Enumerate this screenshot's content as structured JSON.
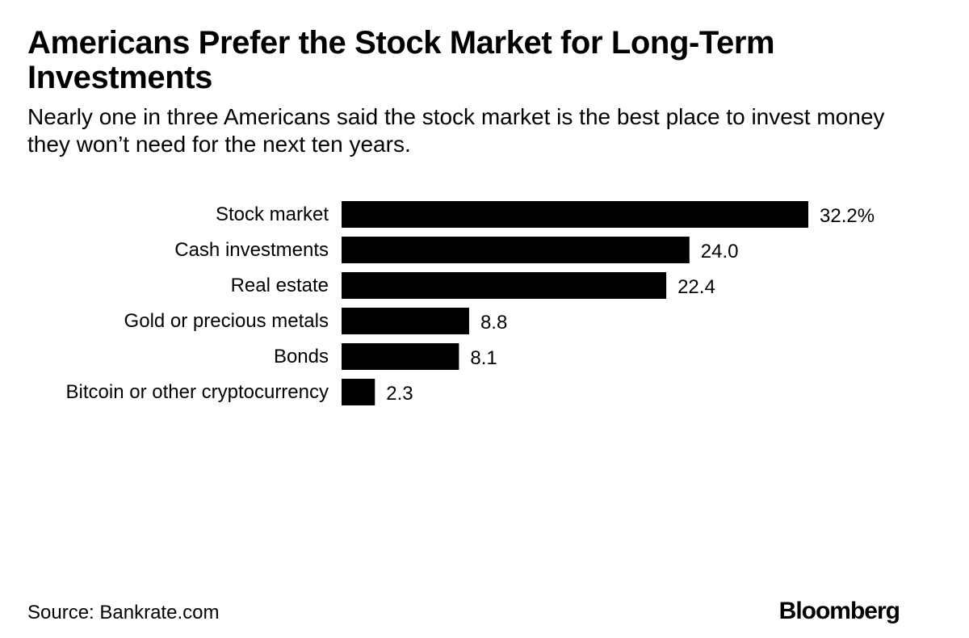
{
  "header": {
    "title": "Americans Prefer the Stock Market for Long-Term Investments",
    "subtitle": "Nearly one in three Americans said the stock market is the best place to invest money they won’t need for the next ten years."
  },
  "footer": {
    "source": "Source: Bankrate.com",
    "brand": "Bloomberg"
  },
  "colors": {
    "bar": "#000000",
    "text": "#000000",
    "background": "#ffffff"
  },
  "chart_data": {
    "type": "bar",
    "orientation": "horizontal",
    "title": "Americans Prefer the Stock Market for Long-Term Investments",
    "subtitle": "Nearly one in three Americans said the stock market is the best place to invest money they won’t need for the next ten years.",
    "xlabel": "",
    "ylabel": "",
    "grid": false,
    "xlim": [
      0,
      32.2
    ],
    "categories": [
      "Stock market",
      "Cash investments",
      "Real estate",
      "Gold or precious metals",
      "Bonds",
      "Bitcoin or other cryptocurrency"
    ],
    "values": [
      32.2,
      24.0,
      22.4,
      8.8,
      8.1,
      2.3
    ],
    "value_labels": [
      "32.2%",
      "24.0",
      "22.4",
      "8.8",
      "8.1",
      "2.3"
    ]
  }
}
